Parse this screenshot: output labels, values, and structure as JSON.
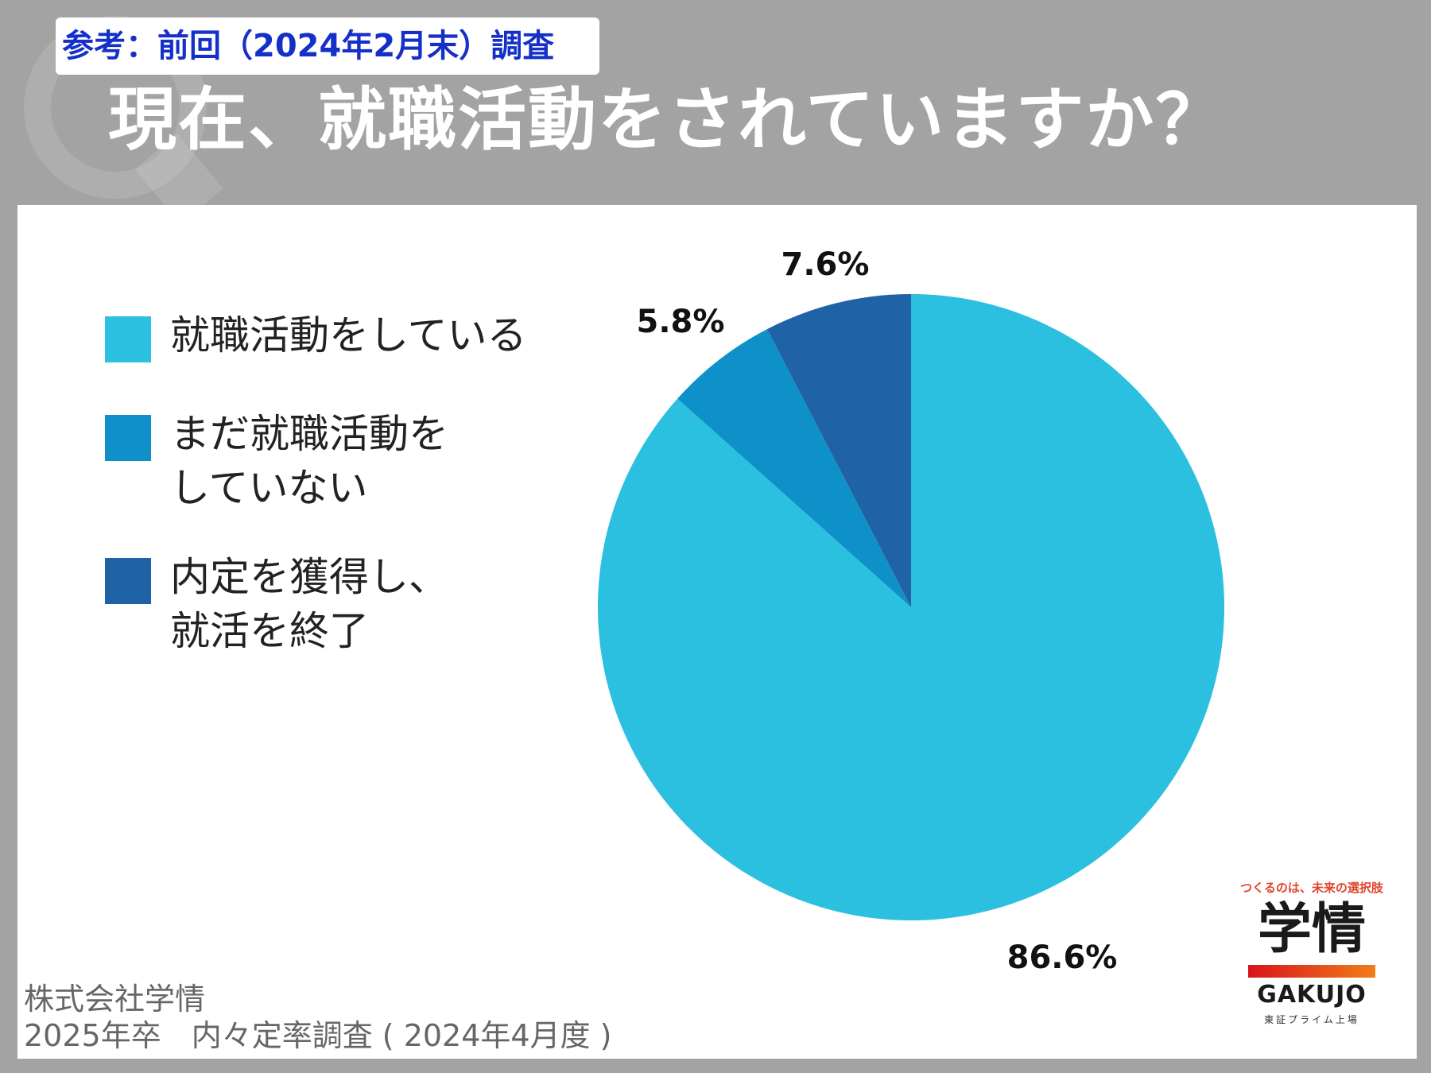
{
  "header": {
    "badge": "参考：前回（2024年2月末）調査",
    "title": "現在、就職活動をされていますか？"
  },
  "source": {
    "text": "株式会社学情\n2025年卒　内々定率調査 ( 2024年4月度 )"
  },
  "logo": {
    "tagline": "つくるのは、未来の選択肢",
    "mark": "学情",
    "wordmark": "GAKUJO",
    "subline": "東証プライム上場"
  },
  "colors": {
    "background": "#a3a3a3",
    "panel": "#ffffff",
    "badge_text": "#1530c8"
  },
  "chart_data": {
    "type": "pie",
    "title": "現在、就職活動をされていますか？",
    "categories": [
      "就職活動をしている",
      "まだ就職活動を\nしていない",
      "内定を獲得し、\n就活を終了"
    ],
    "values": [
      86.6,
      5.8,
      7.6
    ],
    "labels": [
      "86.6%",
      "5.8%",
      "7.6%"
    ],
    "colors": [
      "#2bbfe0",
      "#0e91c8",
      "#2062a6"
    ],
    "legend_placement": "left"
  }
}
